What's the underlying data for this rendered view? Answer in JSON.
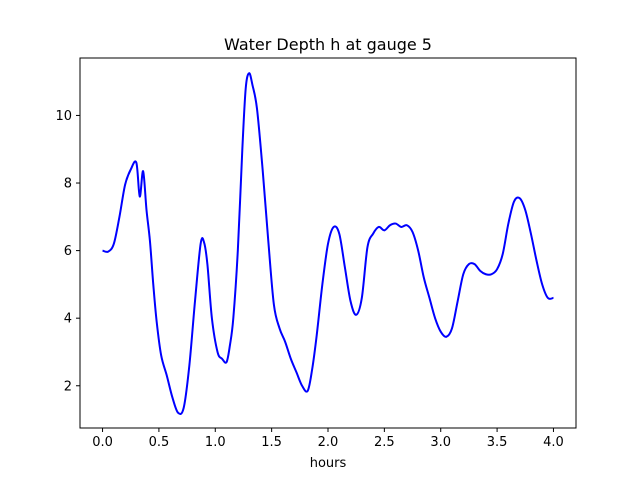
{
  "chart_data": {
    "type": "line",
    "title": "Water Depth h at gauge 5",
    "xlabel": "hours",
    "ylabel": "",
    "xlim": [
      -0.2,
      4.2
    ],
    "ylim": [
      0.75,
      11.7
    ],
    "xticks": [
      0.0,
      0.5,
      1.0,
      1.5,
      2.0,
      2.5,
      3.0,
      3.5,
      4.0
    ],
    "xtick_labels": [
      "0.0",
      "0.5",
      "1.0",
      "1.5",
      "2.0",
      "2.5",
      "3.0",
      "3.5",
      "4.0"
    ],
    "yticks": [
      2,
      4,
      6,
      8,
      10
    ],
    "ytick_labels": [
      "2",
      "4",
      "6",
      "8",
      "10"
    ],
    "grid": false,
    "series": [
      {
        "color": "#0000ff",
        "x": [
          0.0,
          0.05,
          0.1,
          0.15,
          0.2,
          0.25,
          0.3,
          0.33,
          0.36,
          0.39,
          0.42,
          0.45,
          0.48,
          0.52,
          0.57,
          0.62,
          0.67,
          0.72,
          0.77,
          0.82,
          0.87,
          0.9,
          0.93,
          0.97,
          1.02,
          1.06,
          1.1,
          1.13,
          1.16,
          1.2,
          1.24,
          1.27,
          1.3,
          1.33,
          1.37,
          1.42,
          1.47,
          1.52,
          1.57,
          1.62,
          1.67,
          1.72,
          1.77,
          1.82,
          1.86,
          1.9,
          1.95,
          2.0,
          2.05,
          2.1,
          2.15,
          2.2,
          2.25,
          2.3,
          2.35,
          2.4,
          2.45,
          2.5,
          2.55,
          2.6,
          2.65,
          2.7,
          2.75,
          2.8,
          2.85,
          2.9,
          2.95,
          3.0,
          3.05,
          3.1,
          3.15,
          3.2,
          3.25,
          3.3,
          3.35,
          3.4,
          3.45,
          3.5,
          3.55,
          3.6,
          3.65,
          3.7,
          3.75,
          3.8,
          3.85,
          3.9,
          3.95,
          4.0
        ],
        "values": [
          6.0,
          5.97,
          6.2,
          7.0,
          7.95,
          8.4,
          8.6,
          7.6,
          8.35,
          7.2,
          6.3,
          5.0,
          3.9,
          2.9,
          2.3,
          1.65,
          1.2,
          1.35,
          2.6,
          4.5,
          6.2,
          6.25,
          5.6,
          4.0,
          3.0,
          2.8,
          2.7,
          3.2,
          4.0,
          6.0,
          9.0,
          10.8,
          11.25,
          10.9,
          10.2,
          8.4,
          6.3,
          4.4,
          3.7,
          3.3,
          2.8,
          2.4,
          2.0,
          1.85,
          2.5,
          3.5,
          5.0,
          6.2,
          6.7,
          6.5,
          5.5,
          4.5,
          4.1,
          4.6,
          6.1,
          6.5,
          6.7,
          6.6,
          6.75,
          6.8,
          6.7,
          6.75,
          6.55,
          6.0,
          5.2,
          4.6,
          4.0,
          3.6,
          3.45,
          3.7,
          4.5,
          5.3,
          5.6,
          5.6,
          5.4,
          5.3,
          5.3,
          5.45,
          5.9,
          6.8,
          7.45,
          7.55,
          7.2,
          6.5,
          5.7,
          5.0,
          4.6,
          4.6
        ]
      }
    ]
  }
}
